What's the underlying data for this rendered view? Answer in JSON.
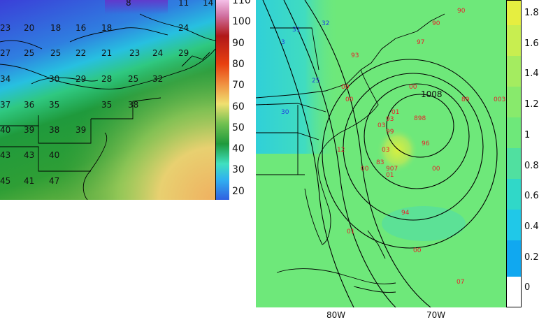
{
  "left_panel": {
    "colorbar_ticks": [
      "110",
      "100",
      "90",
      "80",
      "70",
      "60",
      "50",
      "40",
      "30",
      "20"
    ],
    "temperature_labels": [
      {
        "v": "23"
      },
      {
        "v": "20"
      },
      {
        "v": "18"
      },
      {
        "v": "16"
      },
      {
        "v": "18"
      },
      {
        "v": "24"
      },
      {
        "v": "27"
      },
      {
        "v": "25"
      },
      {
        "v": "25"
      },
      {
        "v": "22"
      },
      {
        "v": "21"
      },
      {
        "v": "23"
      },
      {
        "v": "24"
      },
      {
        "v": "29"
      },
      {
        "v": "34"
      },
      {
        "v": "30"
      },
      {
        "v": "29"
      },
      {
        "v": "28"
      },
      {
        "v": "25"
      },
      {
        "v": "32"
      },
      {
        "v": "37"
      },
      {
        "v": "36"
      },
      {
        "v": "35"
      },
      {
        "v": "35"
      },
      {
        "v": "38"
      },
      {
        "v": "40"
      },
      {
        "v": "39"
      },
      {
        "v": "38"
      },
      {
        "v": "39"
      },
      {
        "v": "43"
      },
      {
        "v": "43"
      },
      {
        "v": "40"
      },
      {
        "v": "45"
      },
      {
        "v": "41"
      },
      {
        "v": "47"
      },
      {
        "v": "8"
      },
      {
        "v": "11"
      },
      {
        "v": "14"
      }
    ]
  },
  "right_panel": {
    "colorbar_ticks": [
      "1.8",
      "1.6",
      "1.4",
      "1.2",
      "1",
      "0.8",
      "0.6",
      "0.4",
      "0.2",
      "0"
    ],
    "longitude_labels": [
      "80W",
      "70W"
    ],
    "isobar_label": "1008",
    "pressure_labels_red": [
      {
        "v": "90"
      },
      {
        "v": "90"
      },
      {
        "v": "97"
      },
      {
        "v": "93"
      },
      {
        "v": "00"
      },
      {
        "v": "00"
      },
      {
        "v": "00"
      },
      {
        "v": "89"
      },
      {
        "v": "003"
      },
      {
        "v": "01"
      },
      {
        "v": "93"
      },
      {
        "v": "03"
      },
      {
        "v": "99"
      },
      {
        "v": "898"
      },
      {
        "v": "96"
      },
      {
        "v": "12"
      },
      {
        "v": "03"
      },
      {
        "v": "83"
      },
      {
        "v": "907"
      },
      {
        "v": "01"
      },
      {
        "v": "00"
      },
      {
        "v": "00"
      },
      {
        "v": "94"
      },
      {
        "v": "01"
      },
      {
        "v": "00"
      },
      {
        "v": "07"
      }
    ],
    "pressure_labels_blue": [
      {
        "v": "31"
      },
      {
        "v": "32"
      },
      {
        "v": "3"
      },
      {
        "v": "25"
      },
      {
        "v": "30"
      }
    ]
  }
}
